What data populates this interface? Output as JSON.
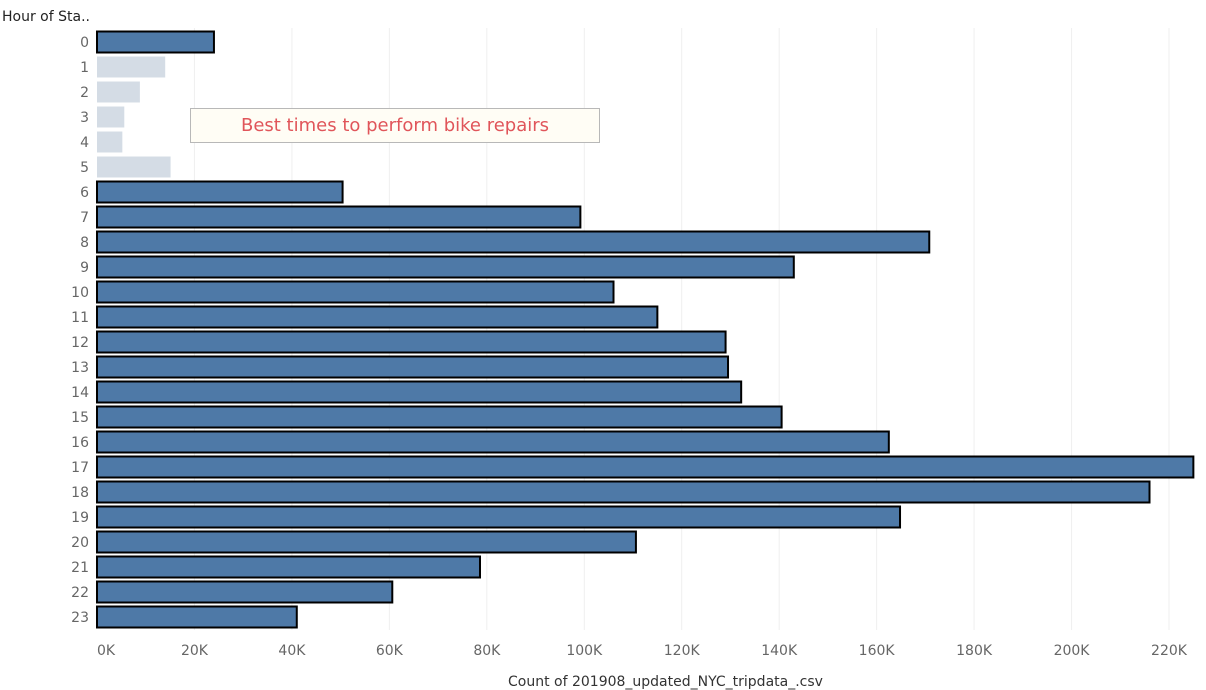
{
  "chart_data": {
    "type": "bar",
    "orientation": "horizontal",
    "row_header": "Hour of Sta..",
    "xlabel": "Count of 201908_updated_NYC_tripdata_.csv",
    "annotation": "Best times to perform bike repairs",
    "categories": [
      "0",
      "1",
      "2",
      "3",
      "4",
      "5",
      "6",
      "7",
      "8",
      "9",
      "10",
      "11",
      "12",
      "13",
      "14",
      "15",
      "16",
      "17",
      "18",
      "19",
      "20",
      "21",
      "22",
      "23"
    ],
    "values": [
      24000,
      14000,
      8800,
      5600,
      5200,
      15100,
      50400,
      99200,
      170800,
      143000,
      106000,
      115000,
      129000,
      129500,
      132200,
      140500,
      162500,
      225000,
      216000,
      164800,
      110600,
      78600,
      60600,
      41000
    ],
    "highlighted": [
      true,
      false,
      false,
      false,
      false,
      false,
      true,
      true,
      true,
      true,
      true,
      true,
      true,
      true,
      true,
      true,
      true,
      true,
      true,
      true,
      true,
      true,
      true,
      true
    ],
    "xlim": [
      0,
      230000
    ],
    "xticks": [
      0,
      20000,
      40000,
      60000,
      80000,
      100000,
      120000,
      140000,
      160000,
      180000,
      200000,
      220000
    ],
    "xtick_labels": [
      "0K",
      "20K",
      "40K",
      "60K",
      "80K",
      "100K",
      "120K",
      "140K",
      "160K",
      "180K",
      "200K",
      "220K"
    ],
    "grid": "vertical",
    "colors": {
      "bar": "#4e79a7",
      "bar_outline": "#000000",
      "bar_dimmed": "#d4dce5",
      "annotation_text": "#e0555a",
      "annotation_background": "#fffdf5"
    }
  }
}
